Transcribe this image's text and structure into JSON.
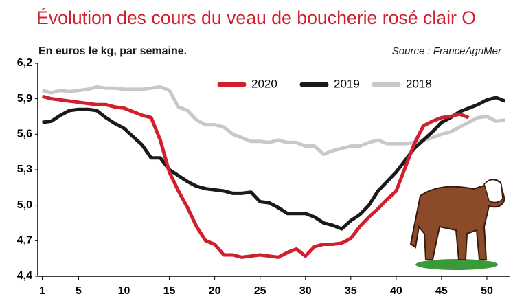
{
  "chart_data": {
    "type": "line",
    "title": "Évolution des cours du veau de boucherie rosé clair O",
    "subtitle": "En euros le kg, par semaine.",
    "source": "Source : FranceAgriMer",
    "x": [
      1,
      2,
      3,
      4,
      5,
      6,
      7,
      8,
      9,
      10,
      11,
      12,
      13,
      14,
      15,
      16,
      17,
      18,
      19,
      20,
      21,
      22,
      23,
      24,
      25,
      26,
      27,
      28,
      29,
      30,
      31,
      32,
      33,
      34,
      35,
      36,
      37,
      38,
      39,
      40,
      41,
      42,
      43,
      44,
      45,
      46,
      47,
      48,
      49,
      50,
      51,
      52
    ],
    "series": [
      {
        "name": "2020",
        "color": "#d0202e",
        "values": [
          5.92,
          5.9,
          5.89,
          5.88,
          5.87,
          5.86,
          5.85,
          5.85,
          5.83,
          5.82,
          5.79,
          5.76,
          5.74,
          5.55,
          5.28,
          5.12,
          4.98,
          4.82,
          4.7,
          4.67,
          4.58,
          4.58,
          4.56,
          4.57,
          4.58,
          4.57,
          4.56,
          4.6,
          4.63,
          4.57,
          4.65,
          4.67,
          4.67,
          4.68,
          4.72,
          4.82,
          4.9,
          4.97,
          5.05,
          5.12,
          5.32,
          5.52,
          5.67,
          5.71,
          5.74,
          5.75,
          5.77,
          5.74,
          null,
          null,
          null,
          null
        ]
      },
      {
        "name": "2019",
        "color": "#1a1a1a",
        "values": [
          5.7,
          5.71,
          5.76,
          5.8,
          5.81,
          5.81,
          5.8,
          5.74,
          5.69,
          5.65,
          5.58,
          5.51,
          5.4,
          5.4,
          5.3,
          5.25,
          5.2,
          5.16,
          5.14,
          5.13,
          5.12,
          5.1,
          5.1,
          5.11,
          5.03,
          5.02,
          4.98,
          4.93,
          4.93,
          4.93,
          4.9,
          4.85,
          4.83,
          4.8,
          4.87,
          4.92,
          5.0,
          5.12,
          5.2,
          5.28,
          5.38,
          5.48,
          5.55,
          5.62,
          5.7,
          5.74,
          5.79,
          5.82,
          5.85,
          5.89,
          5.91,
          5.88
        ]
      },
      {
        "name": "2018",
        "color": "#c8c8c8",
        "values": [
          5.97,
          5.95,
          5.97,
          5.96,
          5.97,
          5.98,
          6.0,
          5.99,
          5.99,
          5.98,
          5.98,
          5.98,
          5.99,
          6.0,
          5.97,
          5.83,
          5.8,
          5.72,
          5.68,
          5.68,
          5.66,
          5.6,
          5.57,
          5.54,
          5.54,
          5.53,
          5.55,
          5.53,
          5.53,
          5.5,
          5.5,
          5.43,
          5.46,
          5.48,
          5.5,
          5.5,
          5.53,
          5.55,
          5.52,
          5.52,
          5.52,
          5.53,
          5.55,
          5.57,
          5.6,
          5.62,
          5.66,
          5.7,
          5.74,
          5.75,
          5.71,
          5.72
        ]
      }
    ],
    "xlim": [
      0.5,
      52.5
    ],
    "xticks": [
      1,
      5,
      10,
      15,
      20,
      25,
      30,
      35,
      40,
      45,
      50
    ],
    "ylim": [
      4.4,
      6.2
    ],
    "yticks": [
      {
        "value": 4.4,
        "label": "4,4"
      },
      {
        "value": 4.7,
        "label": "4,7"
      },
      {
        "value": 5.0,
        "label": "5,0"
      },
      {
        "value": 5.3,
        "label": "5,3"
      },
      {
        "value": 5.6,
        "label": "5,6"
      },
      {
        "value": 5.9,
        "label": "5,9"
      },
      {
        "value": 6.2,
        "label": "6,2"
      }
    ],
    "grid": false,
    "legend": "top"
  }
}
